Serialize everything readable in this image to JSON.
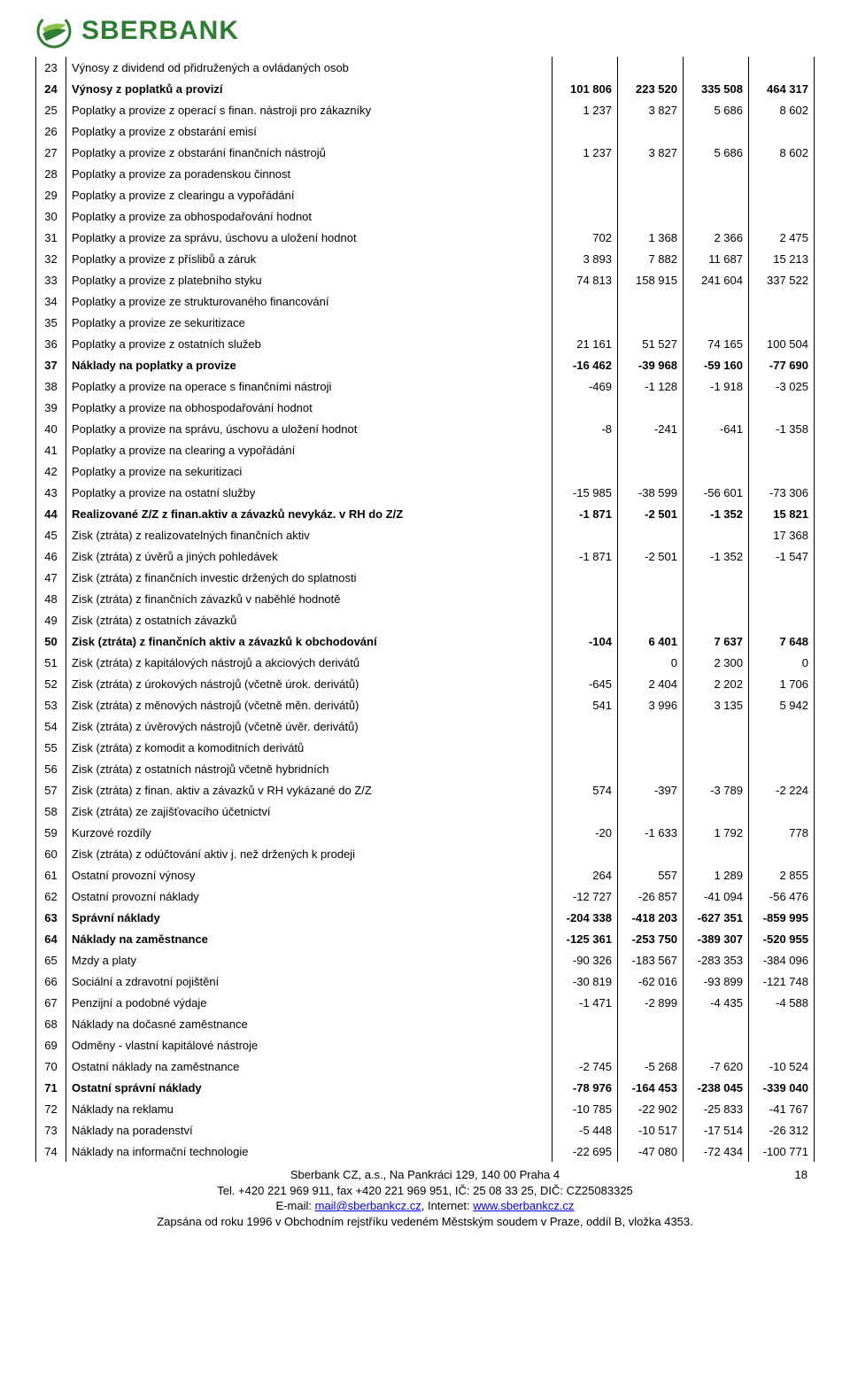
{
  "brand": "SBERBANK",
  "logo_colors": {
    "outer": "#2e7d32",
    "leaf": "#8bc34a"
  },
  "page_num": "18",
  "footer": {
    "line1": "Sberbank CZ, a.s., Na Pankráci 129, 140 00 Praha 4",
    "line2_a": "Tel. +420 221 969 911, fax +420 221 969 951, IČ: 25 08 33 25, DIČ: CZ25083325",
    "line3_a": "E-mail: ",
    "line3_link1": "mail@sberbankcz.cz",
    "line3_b": ", Internet: ",
    "line3_link2": "www.sberbankcz.cz",
    "line4": "Zapsána od roku 1996 v Obchodním rejstříku vedeném Městským soudem v Praze, oddíl B, vložka 4353."
  },
  "rows": [
    {
      "n": "23",
      "d": "Výnosy z dividend od přidružených a ovládaných osob",
      "v": [
        "",
        "",
        "",
        ""
      ],
      "b": false
    },
    {
      "n": "24",
      "d": "Výnosy z poplatků a provizí",
      "v": [
        "101 806",
        "223 520",
        "335 508",
        "464 317"
      ],
      "b": true
    },
    {
      "n": "25",
      "d": "Poplatky a provize z operací s finan. nástroji pro zákazníky",
      "v": [
        "1 237",
        "3 827",
        "5 686",
        "8 602"
      ],
      "b": false
    },
    {
      "n": "26",
      "d": "Poplatky a provize z obstarání emisí",
      "v": [
        "",
        "",
        "",
        ""
      ],
      "b": false
    },
    {
      "n": "27",
      "d": "Poplatky a provize z obstarání finančních nástrojů",
      "v": [
        "1 237",
        "3 827",
        "5 686",
        "8 602"
      ],
      "b": false
    },
    {
      "n": "28",
      "d": "Poplatky a provize za poradenskou činnost",
      "v": [
        "",
        "",
        "",
        ""
      ],
      "b": false
    },
    {
      "n": "29",
      "d": "Poplatky a provize z clearingu a vypořádání",
      "v": [
        "",
        "",
        "",
        ""
      ],
      "b": false
    },
    {
      "n": "30",
      "d": "Poplatky a provize za obhospodařování hodnot",
      "v": [
        "",
        "",
        "",
        ""
      ],
      "b": false
    },
    {
      "n": "31",
      "d": "Poplatky a provize za správu, úschovu a uložení hodnot",
      "v": [
        "702",
        "1 368",
        "2 366",
        "2 475"
      ],
      "b": false
    },
    {
      "n": "32",
      "d": "Poplatky a provize z  příslibů a záruk",
      "v": [
        "3 893",
        "7 882",
        "11 687",
        "15 213"
      ],
      "b": false
    },
    {
      "n": "33",
      "d": "Poplatky a provize z platebního styku",
      "v": [
        "74 813",
        "158 915",
        "241 604",
        "337 522"
      ],
      "b": false
    },
    {
      "n": "34",
      "d": "Poplatky a provize ze strukturovaného financování",
      "v": [
        "",
        "",
        "",
        ""
      ],
      "b": false
    },
    {
      "n": "35",
      "d": "Poplatky a provize ze sekuritizace",
      "v": [
        "",
        "",
        "",
        ""
      ],
      "b": false
    },
    {
      "n": "36",
      "d": "Poplatky a provize z ostatních služeb",
      "v": [
        "21 161",
        "51 527",
        "74 165",
        "100 504"
      ],
      "b": false
    },
    {
      "n": "37",
      "d": "Náklady na poplatky a provize",
      "v": [
        "-16 462",
        "-39 968",
        "-59 160",
        "-77 690"
      ],
      "b": true
    },
    {
      "n": "38",
      "d": "Poplatky a provize na operace s finančními nástroji",
      "v": [
        "-469",
        "-1 128",
        "-1 918",
        "-3 025"
      ],
      "b": false
    },
    {
      "n": "39",
      "d": "Poplatky a provize na obhospodařování hodnot",
      "v": [
        "",
        "",
        "",
        ""
      ],
      "b": false
    },
    {
      "n": "40",
      "d": "Poplatky a provize na správu, úschovu a uložení hodnot",
      "v": [
        "-8",
        "-241",
        "-641",
        "-1 358"
      ],
      "b": false
    },
    {
      "n": "41",
      "d": "Poplatky a provize na clearing a vypořádání",
      "v": [
        "",
        "",
        "",
        ""
      ],
      "b": false
    },
    {
      "n": "42",
      "d": "Poplatky a provize na sekuritizaci",
      "v": [
        "",
        "",
        "",
        ""
      ],
      "b": false
    },
    {
      "n": "43",
      "d": "Poplatky a provize na ostatní služby",
      "v": [
        "-15 985",
        "-38 599",
        "-56 601",
        "-73 306"
      ],
      "b": false
    },
    {
      "n": "44",
      "d": "Realizované Z/Z z finan.aktiv a závazků nevykáz. v RH do Z/Z",
      "v": [
        "-1 871",
        "-2 501",
        "-1 352",
        "15 821"
      ],
      "b": true
    },
    {
      "n": "45",
      "d": "Zisk (ztráta) z realizovatelných finančních aktiv",
      "v": [
        "",
        "",
        "",
        "17 368"
      ],
      "b": false
    },
    {
      "n": "46",
      "d": "Zisk (ztráta) z úvěrů a jiných pohledávek",
      "v": [
        "-1 871",
        "-2 501",
        "-1 352",
        "-1 547"
      ],
      "b": false
    },
    {
      "n": "47",
      "d": "Zisk (ztráta) z finančních investic držených do splatnosti",
      "v": [
        "",
        "",
        "",
        ""
      ],
      "b": false
    },
    {
      "n": "48",
      "d": "Zisk (ztráta) z finančních závazků v naběhlé hodnotě",
      "v": [
        "",
        "",
        "",
        ""
      ],
      "b": false
    },
    {
      "n": "49",
      "d": "Zisk (ztráta) z ostatních závazků",
      "v": [
        "",
        "",
        "",
        ""
      ],
      "b": false
    },
    {
      "n": "50",
      "d": "Zisk (ztráta) z finančních aktiv a závazků  k obchodování",
      "v": [
        "-104",
        "6 401",
        "7 637",
        "7 648"
      ],
      "b": true
    },
    {
      "n": "51",
      "d": "Zisk (ztráta) z kapitálových nástrojů a akciových derivátů",
      "v": [
        "",
        "0",
        "2 300",
        "0"
      ],
      "b": false
    },
    {
      "n": "52",
      "d": "Zisk (ztráta) z úrokových nástrojů (včetně úrok. derivátů)",
      "v": [
        "-645",
        "2 404",
        "2 202",
        "1 706"
      ],
      "b": false
    },
    {
      "n": "53",
      "d": "Zisk (ztráta) z měnových nástrojů  (včetně měn. derivátů)",
      "v": [
        "541",
        "3 996",
        "3 135",
        "5 942"
      ],
      "b": false
    },
    {
      "n": "54",
      "d": "Zisk (ztráta) z úvěrových nástrojů (včetně úvěr. derivátů)",
      "v": [
        "",
        "",
        "",
        ""
      ],
      "b": false
    },
    {
      "n": "55",
      "d": "Zisk (ztráta) z komodit a komoditních derivátů",
      "v": [
        "",
        "",
        "",
        ""
      ],
      "b": false
    },
    {
      "n": "56",
      "d": "Zisk (ztráta) z ostatních nástrojů včetně hybridních",
      "v": [
        "",
        "",
        "",
        ""
      ],
      "b": false
    },
    {
      "n": "57",
      "d": "Zisk (ztráta) z finan. aktiv a závazků v RH vykázané do Z/Z",
      "v": [
        "574",
        "-397",
        "-3 789",
        "-2 224"
      ],
      "b": false
    },
    {
      "n": "58",
      "d": "Zisk (ztráta) ze zajišťovacího účetnictví",
      "v": [
        "",
        "",
        "",
        ""
      ],
      "b": false
    },
    {
      "n": "59",
      "d": "Kurzové rozdíly",
      "v": [
        "-20",
        "-1 633",
        "1 792",
        "778"
      ],
      "b": false
    },
    {
      "n": "60",
      "d": "Zisk (ztráta) z odúčtování aktiv j. než držených k prodeji",
      "v": [
        "",
        "",
        "",
        ""
      ],
      "b": false
    },
    {
      "n": "61",
      "d": "Ostatní provozní výnosy",
      "v": [
        "264",
        "557",
        "1 289",
        "2 855"
      ],
      "b": false
    },
    {
      "n": "62",
      "d": "Ostatní provozní náklady",
      "v": [
        "-12 727",
        "-26 857",
        "-41 094",
        "-56 476"
      ],
      "b": false
    },
    {
      "n": "63",
      "d": "Správní náklady",
      "v": [
        "-204 338",
        "-418 203",
        "-627 351",
        "-859 995"
      ],
      "b": true
    },
    {
      "n": "64",
      "d": "Náklady na zaměstnance",
      "v": [
        "-125 361",
        "-253 750",
        "-389 307",
        "-520 955"
      ],
      "b": true
    },
    {
      "n": "65",
      "d": "Mzdy a platy",
      "v": [
        "-90 326",
        "-183 567",
        "-283 353",
        "-384 096"
      ],
      "b": false
    },
    {
      "n": "66",
      "d": "Sociální a zdravotní pojištění",
      "v": [
        "-30 819",
        "-62 016",
        "-93 899",
        "-121 748"
      ],
      "b": false
    },
    {
      "n": "67",
      "d": "Penzijní a podobné výdaje",
      "v": [
        "-1 471",
        "-2 899",
        "-4 435",
        "-4 588"
      ],
      "b": false
    },
    {
      "n": "68",
      "d": "Náklady na dočasné  zaměstnance",
      "v": [
        "",
        "",
        "",
        ""
      ],
      "b": false
    },
    {
      "n": "69",
      "d": "Odměny - vlastní kapitálové nástroje",
      "v": [
        "",
        "",
        "",
        ""
      ],
      "b": false
    },
    {
      "n": "70",
      "d": "Ostatní náklady na zaměstnance",
      "v": [
        "-2 745",
        "-5 268",
        "-7 620",
        "-10 524"
      ],
      "b": false
    },
    {
      "n": "71",
      "d": "Ostatní správní náklady",
      "v": [
        "-78 976",
        "-164 453",
        "-238 045",
        "-339 040"
      ],
      "b": true
    },
    {
      "n": "72",
      "d": "Náklady na reklamu",
      "v": [
        "-10 785",
        "-22 902",
        "-25 833",
        "-41 767"
      ],
      "b": false
    },
    {
      "n": "73",
      "d": "Náklady na poradenství",
      "v": [
        "-5 448",
        "-10 517",
        "-17 514",
        "-26 312"
      ],
      "b": false
    },
    {
      "n": "74",
      "d": "Náklady na informační technologie",
      "v": [
        "-22 695",
        "-47 080",
        "-72 434",
        "-100 771"
      ],
      "b": false
    }
  ]
}
